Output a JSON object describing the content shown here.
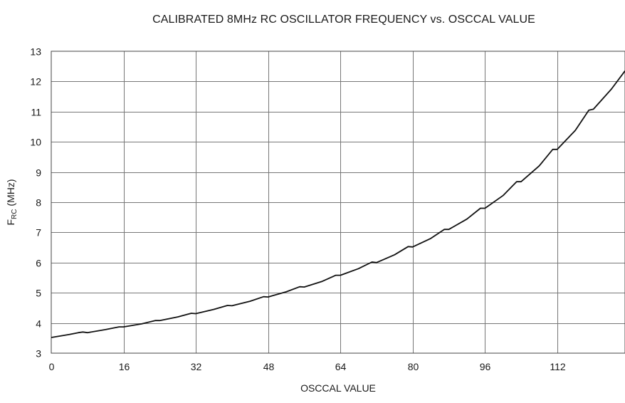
{
  "chart_data": {
    "type": "line",
    "title": "CALIBRATED 8MHz RC OSCILLATOR FREQUENCY vs. OSCCAL VALUE",
    "xlabel": "OSCCAL VALUE",
    "ylabel": {
      "prefix": "F",
      "subscript": "RC",
      "suffix": " (MHz)"
    },
    "xlim": [
      0,
      127
    ],
    "ylim": [
      3,
      13
    ],
    "xticks": [
      0,
      16,
      32,
      48,
      64,
      80,
      96,
      112
    ],
    "yticks": [
      3,
      4,
      5,
      6,
      7,
      8,
      9,
      10,
      11,
      12,
      13
    ],
    "grid": true,
    "series": [
      {
        "x": [
          0,
          4,
          6,
          7,
          8,
          12,
          15,
          16,
          20,
          23,
          24,
          28,
          31,
          32,
          36,
          39,
          40,
          44,
          47,
          48,
          52,
          55,
          56,
          60,
          63,
          64,
          68,
          71,
          72,
          76,
          79,
          80,
          84,
          87,
          88,
          92,
          95,
          96,
          100,
          103,
          104,
          108,
          111,
          112,
          116,
          119,
          120,
          124,
          127
        ],
        "y": [
          3.52,
          3.62,
          3.68,
          3.7,
          3.68,
          3.78,
          3.87,
          3.87,
          3.97,
          4.08,
          4.08,
          4.2,
          4.32,
          4.31,
          4.45,
          4.58,
          4.57,
          4.72,
          4.87,
          4.86,
          5.03,
          5.2,
          5.19,
          5.38,
          5.58,
          5.58,
          5.8,
          6.02,
          6.0,
          6.26,
          6.53,
          6.52,
          6.8,
          7.1,
          7.1,
          7.44,
          7.8,
          7.8,
          8.22,
          8.68,
          8.68,
          9.2,
          9.75,
          9.75,
          10.38,
          11.05,
          11.08,
          11.75,
          12.35
        ]
      }
    ]
  }
}
